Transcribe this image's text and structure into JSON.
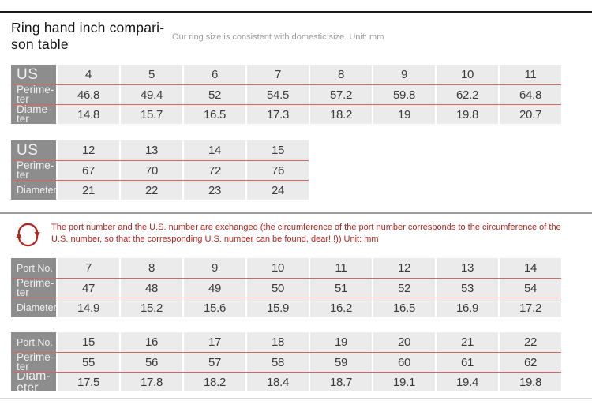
{
  "header": {
    "title": "Ring hand inch compari-\nson table",
    "subtitle": "Our ring size is consistent with domestic size. Unit: mm"
  },
  "note": {
    "icon": "exchange-cycle-icon",
    "text": "The port number and the U.S. number are exchanged (the circumference of the port number corresponds to the circumference of the U.S. number, so that the corresponding U.S. number can be found, dear! !)) Unit: mm"
  },
  "colors": {
    "accent_red": "#b3241d",
    "row_divider_red": "#cc6a64",
    "header_cell_gray": "#8d8d8d",
    "cell_bg": "#ebebeb",
    "top_rule": "#1b1b1b",
    "mid_rule": "#9c9c9c",
    "bottom_rule": "#d8d8d8"
  },
  "chart_data": [
    {
      "type": "table",
      "name": "us-size-table-a",
      "rows": [
        {
          "label": "US",
          "label_size": "lg",
          "values": [
            "4",
            "5",
            "6",
            "7",
            "8",
            "9",
            "10",
            "11"
          ]
        },
        {
          "label": "Perime-\nter",
          "label_size": "md",
          "values": [
            "46.8",
            "49.4",
            "52",
            "54.5",
            "57.2",
            "59.8",
            "62.2",
            "64.8"
          ]
        },
        {
          "label": "Diame-\nter",
          "label_size": "md",
          "values": [
            "14.8",
            "15.7",
            "16.5",
            "17.3",
            "18.2",
            "19",
            "19.8",
            "20.7"
          ]
        }
      ]
    },
    {
      "type": "table",
      "name": "us-size-table-b",
      "rows": [
        {
          "label": "US",
          "label_size": "lg",
          "values": [
            "12",
            "13",
            "14",
            "15"
          ]
        },
        {
          "label": "Perime-\nter",
          "label_size": "md",
          "values": [
            "67",
            "70",
            "72",
            "76"
          ]
        },
        {
          "label": "Diameter",
          "label_size": "sm",
          "values": [
            "21",
            "22",
            "23",
            "24"
          ]
        }
      ]
    },
    {
      "type": "table",
      "name": "port-size-table-a",
      "rows": [
        {
          "label": "Port No.",
          "label_size": "sm",
          "values": [
            "7",
            "8",
            "9",
            "10",
            "11",
            "12",
            "13",
            "14"
          ]
        },
        {
          "label": "Perime-\nter",
          "label_size": "md",
          "values": [
            "47",
            "48",
            "49",
            "50",
            "51",
            "52",
            "53",
            "54"
          ]
        },
        {
          "label": "Diameter",
          "label_size": "sm",
          "values": [
            "14.9",
            "15.2",
            "15.6",
            "15.9",
            "16.2",
            "16.5",
            "16.9",
            "17.2"
          ]
        }
      ]
    },
    {
      "type": "table",
      "name": "port-size-table-b",
      "rows": [
        {
          "label": "Port No.",
          "label_size": "sm",
          "values": [
            "15",
            "16",
            "17",
            "18",
            "19",
            "20",
            "21",
            "22"
          ]
        },
        {
          "label": "Perime-\nter",
          "label_size": "md",
          "values": [
            "55",
            "56",
            "57",
            "58",
            "59",
            "60",
            "61",
            "62"
          ]
        },
        {
          "label": "Diam-\neter",
          "label_size": "xl",
          "values": [
            "17.5",
            "17.8",
            "18.2",
            "18.4",
            "18.7",
            "19.1",
            "19.4",
            "19.8"
          ]
        }
      ]
    }
  ]
}
